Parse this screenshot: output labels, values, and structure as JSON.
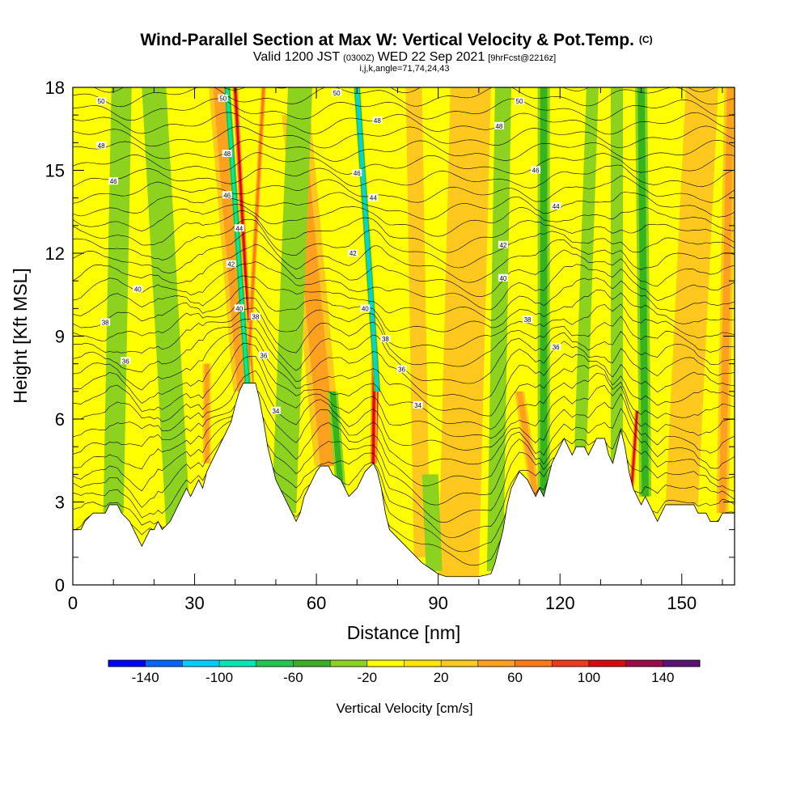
{
  "chart_data": {
    "type": "heatmap",
    "title": "Wind-Parallel Section at Max W: Vertical Velocity & Pot.Temp.",
    "title_mark": "(C)",
    "subtitle_main_a": "Valid 1200 JST",
    "subtitle_small_a": "(0300Z)",
    "subtitle_main_b": "WED 22 Sep 2021",
    "subtitle_small_b": "[9hrFcst@2216z]",
    "subtitle2": "i,j,k,angle=71,74,24,43",
    "xlabel": "Distance [nm]",
    "ylabel": "Height [Kft MSL]",
    "xlim": [
      0,
      163
    ],
    "ylim": [
      0,
      18
    ],
    "x_ticks": [
      0,
      30,
      60,
      90,
      120,
      150
    ],
    "x_tick_labels": [
      "0",
      "30",
      "60",
      "90",
      "120",
      "150"
    ],
    "y_ticks": [
      0,
      3,
      6,
      9,
      12,
      15,
      18
    ],
    "y_tick_labels": [
      "0",
      "3",
      "6",
      "9",
      "12",
      "15",
      "18"
    ],
    "colorbar": {
      "label": "Vertical Velocity [cm/s]",
      "bounds": [
        -160,
        -140,
        -120,
        -100,
        -80,
        -60,
        -40,
        -20,
        0,
        20,
        40,
        60,
        80,
        100,
        120,
        140,
        160
      ],
      "colors": [
        "#0000ff",
        "#0066ff",
        "#00ccff",
        "#00e6b4",
        "#1ec850",
        "#36b41e",
        "#8cd21e",
        "#ffff00",
        "#ffe600",
        "#ffc81e",
        "#ffa01e",
        "#ff7814",
        "#f03c14",
        "#dc0a0a",
        "#a00a46",
        "#5a1478"
      ],
      "tick_labels": [
        "-140",
        "-100",
        "-60",
        "-20",
        "20",
        "60",
        "100",
        "140"
      ],
      "tick_values": [
        -140,
        -100,
        -60,
        -20,
        20,
        60,
        100,
        140
      ]
    },
    "terrain_kft": [
      [
        0,
        2.0
      ],
      [
        2,
        2.0
      ],
      [
        3,
        2.3
      ],
      [
        5,
        2.6
      ],
      [
        8,
        2.6
      ],
      [
        9,
        2.9
      ],
      [
        11,
        2.9
      ],
      [
        12,
        2.6
      ],
      [
        14,
        2.3
      ],
      [
        15,
        2.0
      ],
      [
        16,
        1.7
      ],
      [
        17,
        1.4
      ],
      [
        18,
        1.7
      ],
      [
        19,
        2.0
      ],
      [
        20,
        2.0
      ],
      [
        21,
        2.3
      ],
      [
        22,
        2.0
      ],
      [
        24,
        2.3
      ],
      [
        25,
        2.6
      ],
      [
        26,
        2.9
      ],
      [
        27,
        3.2
      ],
      [
        28,
        3.5
      ],
      [
        29,
        3.2
      ],
      [
        30,
        3.5
      ],
      [
        31,
        3.8
      ],
      [
        32,
        3.5
      ],
      [
        33,
        4.1
      ],
      [
        34,
        4.4
      ],
      [
        35,
        4.7
      ],
      [
        36,
        5.0
      ],
      [
        37,
        5.3
      ],
      [
        38,
        5.6
      ],
      [
        39,
        5.9
      ],
      [
        40,
        6.5
      ],
      [
        41,
        7.0
      ],
      [
        42,
        7.3
      ],
      [
        45,
        7.3
      ],
      [
        46,
        6.7
      ],
      [
        47,
        5.9
      ],
      [
        48,
        5.0
      ],
      [
        49,
        4.4
      ],
      [
        50,
        3.8
      ],
      [
        51,
        3.5
      ],
      [
        52,
        3.2
      ],
      [
        53,
        2.9
      ],
      [
        54,
        2.6
      ],
      [
        55,
        2.3
      ],
      [
        56,
        2.6
      ],
      [
        57,
        3.2
      ],
      [
        58,
        3.5
      ],
      [
        59,
        3.8
      ],
      [
        60,
        4.1
      ],
      [
        61,
        4.3
      ],
      [
        63,
        4.3
      ],
      [
        64,
        4.0
      ],
      [
        66,
        3.8
      ],
      [
        67,
        3.5
      ],
      [
        68,
        3.2
      ],
      [
        70,
        3.5
      ],
      [
        71,
        3.8
      ],
      [
        72,
        4.1
      ],
      [
        74,
        4.4
      ],
      [
        75,
        4.1
      ],
      [
        76,
        3.5
      ],
      [
        77,
        2.6
      ],
      [
        78,
        2.0
      ],
      [
        80,
        1.7
      ],
      [
        82,
        1.4
      ],
      [
        84,
        1.1
      ],
      [
        86,
        0.8
      ],
      [
        88,
        0.6
      ],
      [
        90,
        0.4
      ],
      [
        92,
        0.3
      ],
      [
        100,
        0.3
      ],
      [
        103,
        0.4
      ],
      [
        104,
        0.8
      ],
      [
        105,
        1.4
      ],
      [
        106,
        2.0
      ],
      [
        107,
        2.9
      ],
      [
        108,
        3.5
      ],
      [
        110,
        4.1
      ],
      [
        112,
        3.8
      ],
      [
        113,
        3.5
      ],
      [
        114,
        3.2
      ],
      [
        115,
        3.5
      ],
      [
        116,
        3.2
      ],
      [
        117,
        3.8
      ],
      [
        118,
        4.4
      ],
      [
        119,
        4.7
      ],
      [
        120,
        5.0
      ],
      [
        121,
        5.3
      ],
      [
        122,
        5.0
      ],
      [
        123,
        4.7
      ],
      [
        124,
        5.0
      ],
      [
        126,
        5.0
      ],
      [
        127,
        4.7
      ],
      [
        128,
        5.0
      ],
      [
        129,
        5.3
      ],
      [
        131,
        5.3
      ],
      [
        132,
        4.7
      ],
      [
        133,
        4.4
      ],
      [
        134,
        5.0
      ],
      [
        135,
        5.6
      ],
      [
        136,
        5.0
      ],
      [
        137,
        4.1
      ],
      [
        138,
        3.5
      ],
      [
        139,
        3.2
      ],
      [
        140,
        2.9
      ],
      [
        141,
        3.2
      ],
      [
        142,
        2.9
      ],
      [
        143,
        2.6
      ],
      [
        144,
        2.3
      ],
      [
        145,
        2.6
      ],
      [
        146,
        2.9
      ],
      [
        153,
        2.9
      ],
      [
        154,
        2.6
      ],
      [
        156,
        2.6
      ],
      [
        157,
        2.3
      ],
      [
        159,
        2.3
      ],
      [
        160,
        2.6
      ],
      [
        162,
        2.6
      ],
      [
        163,
        2.6
      ]
    ],
    "updraft_bands": [
      {
        "x_bottom": 44.0,
        "x_top": 40.0,
        "w_nm": 1.4,
        "value": 110,
        "y_min": 7.3,
        "y_max": 18
      },
      {
        "x_bottom": 42.0,
        "x_top": 36.0,
        "w_nm": 5,
        "value": 40,
        "y_min": 7.0,
        "y_max": 18
      },
      {
        "x_bottom": 43.0,
        "x_top": 47.0,
        "w_nm": 1.2,
        "value": 60,
        "y_min": 7.3,
        "y_max": 18
      },
      {
        "x_bottom": 74.5,
        "x_top": 75.0,
        "w_nm": 1.0,
        "value": 145,
        "y_min": 4.4,
        "y_max": 7.5
      },
      {
        "x_bottom": 74.0,
        "x_top": 74.3,
        "w_nm": 1.6,
        "value": 100,
        "y_min": 4.4,
        "y_max": 8.5
      },
      {
        "x_bottom": 63.0,
        "x_top": 55.0,
        "w_nm": 7,
        "value": 45,
        "y_min": 4.3,
        "y_max": 17
      },
      {
        "x_bottom": 137.5,
        "x_top": 139.0,
        "w_nm": 1.2,
        "value": 110,
        "y_min": 3.2,
        "y_max": 6.3
      },
      {
        "x_bottom": 114.0,
        "x_top": 110.0,
        "w_nm": 2.5,
        "value": 55,
        "y_min": 3.2,
        "y_max": 7.0
      },
      {
        "x_bottom": 33.0,
        "x_top": 33.0,
        "w_nm": 2,
        "value": 40,
        "y_min": 4.4,
        "y_max": 8.0
      },
      {
        "x_bottom": 95.0,
        "x_top": 98.0,
        "w_nm": 10,
        "value": 25,
        "y_min": 0.3,
        "y_max": 18
      },
      {
        "x_bottom": 150.0,
        "x_top": 155.0,
        "w_nm": 8,
        "value": 25,
        "y_min": 2.9,
        "y_max": 18
      },
      {
        "x_bottom": 160.0,
        "x_top": 162.0,
        "w_nm": 3,
        "value": 40,
        "y_min": 2.6,
        "y_max": 18
      },
      {
        "x_bottom": 86.0,
        "x_top": 84.0,
        "w_nm": 4,
        "value": 30,
        "y_min": 1.0,
        "y_max": 18
      }
    ],
    "downdraft_bands": [
      {
        "x_bottom": 43.0,
        "x_top": 38.0,
        "w_nm": 1.6,
        "value": -95,
        "y_min": 7.3,
        "y_max": 18
      },
      {
        "x_bottom": 75.0,
        "x_top": 70.0,
        "w_nm": 1.6,
        "value": -105,
        "y_min": 7.0,
        "y_max": 18
      },
      {
        "x_bottom": 66.0,
        "x_top": 64.0,
        "w_nm": 2.5,
        "value": -55,
        "y_min": 3.5,
        "y_max": 7.0
      },
      {
        "x_bottom": 26.0,
        "x_top": 20.0,
        "w_nm": 6,
        "value": -25,
        "y_min": 2.0,
        "y_max": 18
      },
      {
        "x_bottom": 52.0,
        "x_top": 56.0,
        "w_nm": 6,
        "value": -30,
        "y_min": 2.6,
        "y_max": 18
      },
      {
        "x_bottom": 116.0,
        "x_top": 116.0,
        "w_nm": 3,
        "value": -45,
        "y_min": 3.2,
        "y_max": 18
      },
      {
        "x_bottom": 125.0,
        "x_top": 128.0,
        "w_nm": 3,
        "value": -30,
        "y_min": 4.7,
        "y_max": 18
      },
      {
        "x_bottom": 141.0,
        "x_top": 140.0,
        "w_nm": 3,
        "value": -50,
        "y_min": 3.2,
        "y_max": 18
      },
      {
        "x_bottom": 10.0,
        "x_top": 12.0,
        "w_nm": 5,
        "value": -25,
        "y_min": 2.6,
        "y_max": 18
      },
      {
        "x_bottom": 104.0,
        "x_top": 106.0,
        "w_nm": 4,
        "value": -30,
        "y_min": 0.5,
        "y_max": 18
      },
      {
        "x_bottom": 134.0,
        "x_top": 134.0,
        "w_nm": 3,
        "value": -25,
        "y_min": 4.0,
        "y_max": 18
      },
      {
        "x_bottom": 89.0,
        "x_top": 88.0,
        "w_nm": 4,
        "value": -25,
        "y_min": 0.5,
        "y_max": 4.0
      }
    ],
    "theta_contour_labels": [
      {
        "x": 7,
        "y": 17.5,
        "text": "50"
      },
      {
        "x": 7,
        "y": 15.9,
        "text": "48"
      },
      {
        "x": 10,
        "y": 14.6,
        "text": "46"
      },
      {
        "x": 16,
        "y": 10.7,
        "text": "40"
      },
      {
        "x": 8,
        "y": 9.5,
        "text": "38"
      },
      {
        "x": 13,
        "y": 8.1,
        "text": "36"
      },
      {
        "x": 37,
        "y": 17.6,
        "text": "50"
      },
      {
        "x": 38,
        "y": 15.6,
        "text": "48"
      },
      {
        "x": 38,
        "y": 14.1,
        "text": "46"
      },
      {
        "x": 41,
        "y": 12.9,
        "text": "44"
      },
      {
        "x": 39,
        "y": 11.6,
        "text": "42"
      },
      {
        "x": 41,
        "y": 10.0,
        "text": "40"
      },
      {
        "x": 45,
        "y": 9.7,
        "text": "38"
      },
      {
        "x": 47,
        "y": 8.3,
        "text": "36"
      },
      {
        "x": 50,
        "y": 6.3,
        "text": "34"
      },
      {
        "x": 65,
        "y": 17.8,
        "text": "50"
      },
      {
        "x": 75,
        "y": 16.8,
        "text": "48"
      },
      {
        "x": 70,
        "y": 14.9,
        "text": "46"
      },
      {
        "x": 74,
        "y": 14.0,
        "text": "44"
      },
      {
        "x": 69,
        "y": 12.0,
        "text": "42"
      },
      {
        "x": 72,
        "y": 10.0,
        "text": "40"
      },
      {
        "x": 77,
        "y": 8.9,
        "text": "38"
      },
      {
        "x": 81,
        "y": 7.8,
        "text": "36"
      },
      {
        "x": 85,
        "y": 6.5,
        "text": "34"
      },
      {
        "x": 110,
        "y": 17.5,
        "text": "50"
      },
      {
        "x": 105,
        "y": 16.6,
        "text": "48"
      },
      {
        "x": 114,
        "y": 15.0,
        "text": "46"
      },
      {
        "x": 119,
        "y": 13.7,
        "text": "44"
      },
      {
        "x": 106,
        "y": 12.3,
        "text": "42"
      },
      {
        "x": 106,
        "y": 11.1,
        "text": "40"
      },
      {
        "x": 112,
        "y": 9.6,
        "text": "38"
      },
      {
        "x": 119,
        "y": 8.6,
        "text": "36"
      }
    ]
  }
}
